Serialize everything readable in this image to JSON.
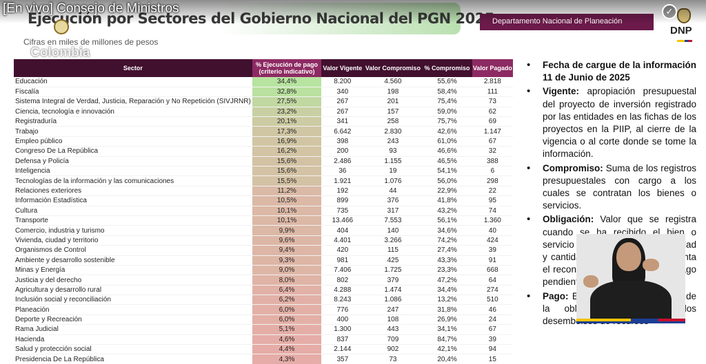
{
  "video_title": "[En vivo] Consejo de Ministros",
  "header": {
    "title": "Ejecución por Sectores del Gobierno Nacional del PGN 2025",
    "subtitle": "Cifras en miles de millones de pesos",
    "country": "Colombia",
    "dept_tag": "Departamento Nacional de Planeación",
    "dnp_logo": "DNP"
  },
  "table": {
    "columns": {
      "sector": "Sector",
      "pct_pago": "% Ejecución de pago (criterio indicativo)",
      "vigente": "Valor Vigente",
      "compromiso": "Valor Compromiso",
      "pct_compromiso": "% Compromiso",
      "pagado": "Valor Pagado"
    },
    "rows": [
      {
        "sector": "Educación",
        "pct_pago": "34,4%",
        "vigente": "8.200",
        "compromiso": "4.560",
        "pct_compromiso": "55,6%",
        "pagado": "2.818",
        "heat": 0.0
      },
      {
        "sector": "Fiscalía",
        "pct_pago": "32,8%",
        "vigente": "340",
        "compromiso": "198",
        "pct_compromiso": "58,4%",
        "pagado": "111",
        "heat": 0.05
      },
      {
        "sector": "Sistema Integral de Verdad, Justicia, Reparación y No Repetición (SIVJRNR)",
        "pct_pago": "27,5%",
        "vigente": "267",
        "compromiso": "201",
        "pct_compromiso": "75,4%",
        "pagado": "73",
        "heat": 0.2
      },
      {
        "sector": "Ciencia, tecnología e innovación",
        "pct_pago": "23,2%",
        "vigente": "267",
        "compromiso": "157",
        "pct_compromiso": "59,0%",
        "pagado": "62",
        "heat": 0.33
      },
      {
        "sector": "Registraduría",
        "pct_pago": "20,1%",
        "vigente": "341",
        "compromiso": "258",
        "pct_compromiso": "75,7%",
        "pagado": "69",
        "heat": 0.42
      },
      {
        "sector": "Trabajo",
        "pct_pago": "17,3%",
        "vigente": "6.642",
        "compromiso": "2.830",
        "pct_compromiso": "42,6%",
        "pagado": "1.147",
        "heat": 0.5
      },
      {
        "sector": "Empleo público",
        "pct_pago": "16,9%",
        "vigente": "398",
        "compromiso": "243",
        "pct_compromiso": "61,0%",
        "pagado": "67",
        "heat": 0.52
      },
      {
        "sector": "Congreso De La República",
        "pct_pago": "16,2%",
        "vigente": "200",
        "compromiso": "93",
        "pct_compromiso": "46,6%",
        "pagado": "32",
        "heat": 0.54
      },
      {
        "sector": "Defensa y Policía",
        "pct_pago": "15,6%",
        "vigente": "2.486",
        "compromiso": "1.155",
        "pct_compromiso": "46,5%",
        "pagado": "388",
        "heat": 0.56
      },
      {
        "sector": "Inteligencia",
        "pct_pago": "15,6%",
        "vigente": "36",
        "compromiso": "19",
        "pct_compromiso": "54,1%",
        "pagado": "6",
        "heat": 0.56
      },
      {
        "sector": "Tecnologías de la información y las comunicaciones",
        "pct_pago": "15,5%",
        "vigente": "1.921",
        "compromiso": "1.076",
        "pct_compromiso": "56,0%",
        "pagado": "298",
        "heat": 0.57
      },
      {
        "sector": "Relaciones exteriores",
        "pct_pago": "11,2%",
        "vigente": "192",
        "compromiso": "44",
        "pct_compromiso": "22,9%",
        "pagado": "22",
        "heat": 0.7
      },
      {
        "sector": "Información Estadística",
        "pct_pago": "10,5%",
        "vigente": "899",
        "compromiso": "376",
        "pct_compromiso": "41,8%",
        "pagado": "95",
        "heat": 0.72
      },
      {
        "sector": "Cultura",
        "pct_pago": "10,1%",
        "vigente": "735",
        "compromiso": "317",
        "pct_compromiso": "43,2%",
        "pagado": "74",
        "heat": 0.73
      },
      {
        "sector": "Transporte",
        "pct_pago": "10,1%",
        "vigente": "13.466",
        "compromiso": "7.553",
        "pct_compromiso": "56,1%",
        "pagado": "1.360",
        "heat": 0.73
      },
      {
        "sector": "Comercio, industria y turismo",
        "pct_pago": "9,9%",
        "vigente": "404",
        "compromiso": "140",
        "pct_compromiso": "34,6%",
        "pagado": "40",
        "heat": 0.74
      },
      {
        "sector": "Vivienda, ciudad y territorio",
        "pct_pago": "9,6%",
        "vigente": "4.401",
        "compromiso": "3.266",
        "pct_compromiso": "74,2%",
        "pagado": "424",
        "heat": 0.75
      },
      {
        "sector": "Organismos de Control",
        "pct_pago": "9,4%",
        "vigente": "420",
        "compromiso": "115",
        "pct_compromiso": "27,4%",
        "pagado": "39",
        "heat": 0.76
      },
      {
        "sector": "Ambiente y desarrollo sostenible",
        "pct_pago": "9,3%",
        "vigente": "981",
        "compromiso": "425",
        "pct_compromiso": "43,3%",
        "pagado": "91",
        "heat": 0.76
      },
      {
        "sector": "Minas y Energía",
        "pct_pago": "9,0%",
        "vigente": "7.406",
        "compromiso": "1.725",
        "pct_compromiso": "23,3%",
        "pagado": "668",
        "heat": 0.77
      },
      {
        "sector": "Justicia y del derecho",
        "pct_pago": "8,0%",
        "vigente": "802",
        "compromiso": "379",
        "pct_compromiso": "47,2%",
        "pagado": "64",
        "heat": 0.8
      },
      {
        "sector": "Agricultura y desarrollo rural",
        "pct_pago": "6,4%",
        "vigente": "4.288",
        "compromiso": "1.474",
        "pct_compromiso": "34,4%",
        "pagado": "274",
        "heat": 0.85
      },
      {
        "sector": "Inclusión social y reconciliación",
        "pct_pago": "6,2%",
        "vigente": "8.243",
        "compromiso": "1.086",
        "pct_compromiso": "13,2%",
        "pagado": "510",
        "heat": 0.86
      },
      {
        "sector": "Planeación",
        "pct_pago": "6,0%",
        "vigente": "776",
        "compromiso": "247",
        "pct_compromiso": "31,8%",
        "pagado": "46",
        "heat": 0.87
      },
      {
        "sector": "Deporte y Recreación",
        "pct_pago": "6,0%",
        "vigente": "400",
        "compromiso": "108",
        "pct_compromiso": "26,9%",
        "pagado": "24",
        "heat": 0.87
      },
      {
        "sector": "Rama Judicial",
        "pct_pago": "5,1%",
        "vigente": "1.300",
        "compromiso": "443",
        "pct_compromiso": "34,1%",
        "pagado": "67",
        "heat": 0.9
      },
      {
        "sector": "Hacienda",
        "pct_pago": "4,6%",
        "vigente": "837",
        "compromiso": "709",
        "pct_compromiso": "84,7%",
        "pagado": "39",
        "heat": 0.92
      },
      {
        "sector": "Salud y protección social",
        "pct_pago": "4,4%",
        "vigente": "2.144",
        "compromiso": "902",
        "pct_compromiso": "42,1%",
        "pagado": "94",
        "heat": 0.93
      },
      {
        "sector": "Presidencia De La República",
        "pct_pago": "4,3%",
        "vigente": "357",
        "compromiso": "73",
        "pct_compromiso": "20,4%",
        "pagado": "15",
        "heat": 0.93
      }
    ]
  },
  "notes": [
    {
      "term": "Fecha de cargue de la información 11 de Junio de 2025",
      "text": ""
    },
    {
      "term": "Vigente:",
      "text": "apropiación presupuestal del proyecto de inversión registrado por las entidades en las fichas de los proyectos en la PIIP, al cierre de la vigencia o al corte donde se tome la información."
    },
    {
      "term": "Compromiso:",
      "text": "Suma de los registros presupuestales con cargo a los cuales se contratan los bienes o servicios."
    },
    {
      "term": "Obligación:",
      "text": "Valor que se registra cuando se ha recibido el bien o servicio y se ha verificado su calidad y cantidad. La obligación representa el reconocimiento formal de un pago pendiente."
    },
    {
      "term": "Pago:",
      "text": "El pago es la cancelación de la obligación, es decir, los desembolsos de recursos"
    }
  ],
  "colors": {
    "header_dark": "#42102f",
    "header_accent": "#8d2a63",
    "heat_high": "#b7e4a0",
    "heat_low": "#e9a8a8"
  }
}
